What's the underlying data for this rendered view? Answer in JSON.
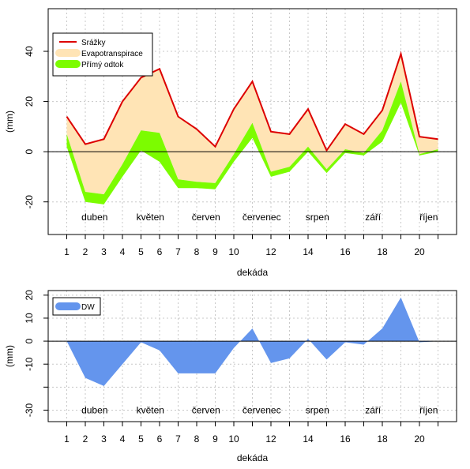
{
  "chart_data": [
    {
      "type": "area",
      "xlabel": "dekáda",
      "ylabel": "(mm)",
      "x": [
        1,
        2,
        3,
        4,
        5,
        6,
        7,
        8,
        9,
        10,
        11,
        12,
        13,
        14,
        15,
        16,
        17,
        18,
        19,
        20,
        21
      ],
      "xlim": [
        0,
        22
      ],
      "ylim": [
        -33,
        57
      ],
      "x_ticks": [
        1,
        2,
        3,
        4,
        5,
        6,
        7,
        8,
        9,
        10,
        11,
        12,
        13,
        14,
        15,
        16,
        17,
        18,
        19,
        20,
        21
      ],
      "x_tick_labels": [
        "1",
        "2",
        "3",
        "4",
        "5",
        "6",
        "7",
        "8",
        "9",
        "10",
        "",
        "12",
        "",
        "14",
        "",
        "16",
        "",
        "18",
        "",
        "20",
        ""
      ],
      "y_ticks": [
        -20,
        0,
        20,
        40
      ],
      "y_tick_labels": [
        "-20",
        "0",
        "20",
        "40"
      ],
      "grid": true,
      "legend_position": "top-left",
      "month_labels": [
        {
          "text": "duben",
          "x": 2.5,
          "y": -26
        },
        {
          "text": "květen",
          "x": 5.5,
          "y": -26
        },
        {
          "text": "červen",
          "x": 8.5,
          "y": -26
        },
        {
          "text": "červenec",
          "x": 11.5,
          "y": -26
        },
        {
          "text": "srpen",
          "x": 14.5,
          "y": -26
        },
        {
          "text": "září",
          "x": 17.5,
          "y": -26
        },
        {
          "text": "říjen",
          "x": 20.5,
          "y": -26
        }
      ],
      "series": [
        {
          "name": "Srážky",
          "kind": "line",
          "color": "#dd0000",
          "values": [
            14,
            3,
            5,
            20,
            29.5,
            33,
            14,
            9,
            2,
            17,
            28,
            8,
            7,
            17,
            0.5,
            11,
            7,
            16.5,
            39,
            6,
            5
          ]
        },
        {
          "name": "Evapotranspirace",
          "kind": "band",
          "color": "#ffe4b5",
          "upper": [
            14,
            3,
            5,
            20,
            29.5,
            33,
            14,
            9,
            2,
            17,
            28,
            8,
            7,
            17,
            0.5,
            11,
            7,
            16.5,
            39,
            6,
            5
          ],
          "lower": [
            7,
            -16,
            -17,
            -5,
            8.5,
            7.5,
            -11,
            -12,
            -12.5,
            -1,
            11.5,
            -8,
            -6,
            2,
            -7,
            1,
            -0.5,
            8.5,
            28,
            -1,
            1
          ]
        },
        {
          "name": "Přímý odtok",
          "kind": "band",
          "color": "#7cfc00",
          "upper": [
            7,
            -16,
            -17,
            -5,
            8.5,
            7.5,
            -11,
            -12,
            -12.5,
            -1,
            11.5,
            -8,
            -6,
            2,
            -7,
            1,
            -0.5,
            8.5,
            28,
            -1,
            1
          ],
          "lower": [
            2,
            -20,
            -21,
            -10,
            0.5,
            -4,
            -14.5,
            -14.5,
            -15,
            -4,
            5.5,
            -10,
            -8,
            0,
            -8.5,
            -0.5,
            -1.5,
            4,
            19.5,
            -1.5,
            0
          ]
        }
      ]
    },
    {
      "type": "area",
      "xlabel": "dekáda",
      "ylabel": "(mm)",
      "x": [
        1,
        2,
        3,
        4,
        5,
        6,
        7,
        8,
        9,
        10,
        11,
        12,
        13,
        14,
        15,
        16,
        17,
        18,
        19,
        20,
        21
      ],
      "xlim": [
        0,
        22
      ],
      "ylim": [
        -35,
        22
      ],
      "x_ticks": [
        1,
        2,
        3,
        4,
        5,
        6,
        7,
        8,
        9,
        10,
        11,
        12,
        13,
        14,
        15,
        16,
        17,
        18,
        19,
        20,
        21
      ],
      "x_tick_labels": [
        "1",
        "2",
        "3",
        "4",
        "5",
        "6",
        "7",
        "8",
        "9",
        "10",
        "",
        "12",
        "",
        "14",
        "",
        "16",
        "",
        "18",
        "",
        "20",
        ""
      ],
      "y_ticks": [
        -30,
        -10,
        0,
        10,
        20
      ],
      "y_tick_labels": [
        "-30",
        "-10",
        "0",
        "10",
        "20"
      ],
      "y_minor_ticks": [
        -20
      ],
      "grid": true,
      "legend_position": "top-left",
      "month_labels": [
        {
          "text": "duben",
          "x": 2.5,
          "y": -30
        },
        {
          "text": "květen",
          "x": 5.5,
          "y": -30
        },
        {
          "text": "červen",
          "x": 8.5,
          "y": -30
        },
        {
          "text": "červenec",
          "x": 11.5,
          "y": -30
        },
        {
          "text": "srpen",
          "x": 14.5,
          "y": -30
        },
        {
          "text": "září",
          "x": 17.5,
          "y": -30
        },
        {
          "text": "říjen",
          "x": 20.5,
          "y": -30
        }
      ],
      "series": [
        {
          "name": "DW",
          "kind": "fill",
          "color": "#6495ed",
          "values": [
            0,
            -16,
            -19.5,
            -10,
            -0.5,
            -4,
            -14,
            -14,
            -14,
            -3,
            5.5,
            -9.5,
            -7.5,
            1,
            -8,
            -0.5,
            -1.5,
            5.5,
            19,
            -0.5,
            0
          ]
        }
      ]
    }
  ]
}
